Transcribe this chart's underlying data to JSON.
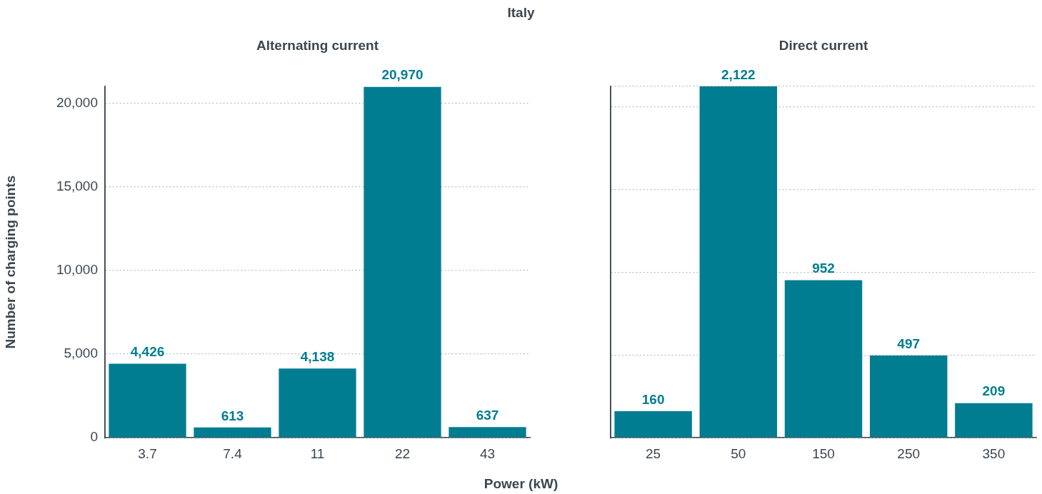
{
  "chart_data": [
    {
      "type": "bar",
      "title": "Italy",
      "subtitle": "Alternating current",
      "xlabel": "Power (kW)",
      "ylabel": "Number of charging points",
      "categories": [
        "3.7",
        "7.4",
        "11",
        "22",
        "43"
      ],
      "values": [
        4426,
        613,
        4138,
        20970,
        637
      ],
      "color": "#007d91",
      "ylim": [
        0,
        21000
      ],
      "yticks": [
        0,
        {
          "value": 5000,
          "label": "5,000"
        },
        {
          "value": 10000,
          "label": "10,000"
        },
        {
          "value": 15000,
          "label": "15,000"
        },
        {
          "value": 20000,
          "label": "20,000"
        }
      ],
      "grid": "y",
      "data_labels": true,
      "value_labels": [
        "4,426",
        "613",
        "4,138",
        "20,970",
        "637"
      ]
    },
    {
      "type": "bar",
      "title": "Direct current",
      "categories": [
        "25",
        "50",
        "150",
        "250",
        "350"
      ],
      "values": [
        160,
        2122,
        952,
        497,
        209
      ],
      "color": "#007d91",
      "ylim": [
        0,
        2122
      ],
      "grid": "y",
      "tick_labels": "x",
      "data_labels": true,
      "value_labels": [
        "160",
        "2,122",
        "952",
        "497",
        "209"
      ]
    }
  ]
}
